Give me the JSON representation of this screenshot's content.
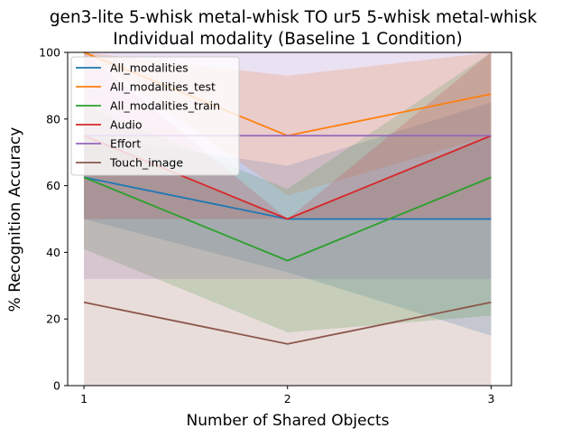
{
  "chart_data": {
    "type": "line",
    "title": "gen3-lite 5-whisk metal-whisk TO ur5 5-whisk metal-whisk",
    "subtitle": "Individual modality (Baseline 1 Condition)",
    "xlabel": "Number of Shared Objects",
    "ylabel": "% Recognition Accuracy",
    "x": [
      1,
      2,
      3
    ],
    "xticks": [
      "1",
      "2",
      "3"
    ],
    "yticks": [
      "0",
      "20",
      "40",
      "60",
      "80",
      "100"
    ],
    "xlim": [
      0.92,
      3.1
    ],
    "ylim": [
      0,
      100
    ],
    "grid": false,
    "legend_position": "top-left",
    "series": [
      {
        "name": "All_modalities",
        "color": "#1f77b4",
        "values": [
          62.5,
          50,
          50
        ],
        "band_lower": [
          50,
          34,
          15
        ],
        "band_upper": [
          75,
          66,
          85
        ]
      },
      {
        "name": "All_modalities_test",
        "color": "#ff7f0e",
        "values": [
          100,
          75,
          87.5
        ],
        "band_lower": [
          100,
          57,
          75
        ],
        "band_upper": [
          100,
          93,
          100
        ]
      },
      {
        "name": "All_modalities_train",
        "color": "#2ca02c",
        "values": [
          62.5,
          37.5,
          62.5
        ],
        "band_lower": [
          41,
          16,
          21
        ],
        "band_upper": [
          84,
          59,
          100
        ]
      },
      {
        "name": "Audio",
        "color": "#d62728",
        "values": [
          75,
          50,
          75
        ],
        "band_lower": [
          50,
          50,
          50
        ],
        "band_upper": [
          100,
          50,
          100
        ]
      },
      {
        "name": "Effort",
        "color": "#9467bd",
        "values": [
          75,
          75,
          75
        ],
        "band_lower": [
          32,
          32,
          32
        ],
        "band_upper": [
          100,
          100,
          100
        ]
      },
      {
        "name": "Touch_image",
        "color": "#8c564b",
        "values": [
          25,
          12.5,
          25
        ],
        "band_lower": [
          0,
          0,
          0
        ],
        "band_upper": [
          75,
          50,
          75
        ]
      }
    ]
  }
}
